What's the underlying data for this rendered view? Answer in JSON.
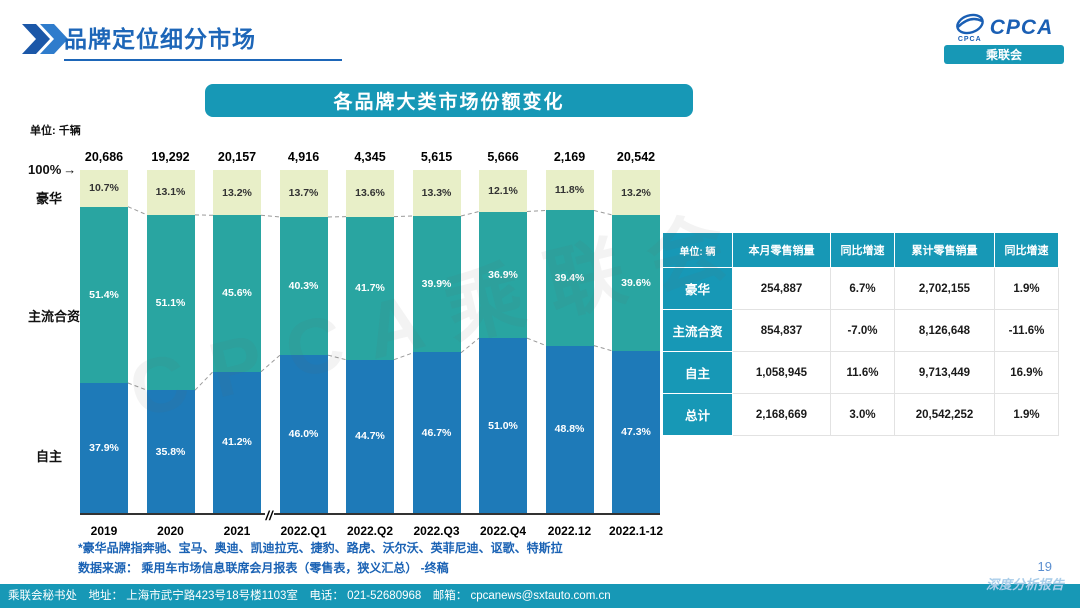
{
  "header": {
    "title": "品牌定位细分市场",
    "logo_text": "CPCA",
    "logo_small": "CPCA",
    "logo_subtext": "乘联会"
  },
  "chart": {
    "banner_title": "各品牌大类市场份额变化",
    "unit_label": "单位: 千辆",
    "axis_labels": {
      "top": "100%",
      "arrow": "→",
      "luxury": "豪华",
      "jv": "主流合资",
      "domestic": "自主"
    },
    "axis_break": "//"
  },
  "chart_data": {
    "type": "bar",
    "stacked": true,
    "title": "各品牌大类市场份额变化",
    "unit": "单位: 千辆",
    "ylim": [
      0,
      100
    ],
    "categories": [
      "2019",
      "2020",
      "2021",
      "2022.Q1",
      "2022.Q2",
      "2022.Q3",
      "2022.Q4",
      "2022.12",
      "2022.1-12"
    ],
    "totals": [
      "20,686",
      "19,292",
      "20,157",
      "4,916",
      "4,345",
      "5,615",
      "5,666",
      "2,169",
      "20,542"
    ],
    "axis_break_between": [
      "2021",
      "2022.Q1"
    ],
    "series": [
      {
        "name": "自主",
        "key": "domestic",
        "color": "#1e7ab8",
        "text_color": "#ffffff",
        "values": [
          37.9,
          35.8,
          41.2,
          46.0,
          44.7,
          46.7,
          51.0,
          48.8,
          47.3
        ]
      },
      {
        "name": "主流合资",
        "key": "jv",
        "color": "#29a5a1",
        "text_color": "#ffffff",
        "values": [
          51.4,
          51.1,
          45.6,
          40.3,
          41.7,
          39.9,
          36.9,
          39.4,
          39.6
        ]
      },
      {
        "name": "豪华",
        "key": "luxury",
        "color": "#e8efc8",
        "text_color": "#333333",
        "values": [
          10.7,
          13.1,
          13.2,
          13.7,
          13.6,
          13.3,
          12.1,
          11.8,
          13.2
        ]
      }
    ]
  },
  "table": {
    "headers": [
      "单位: 辆",
      "本月零售销量",
      "同比增速",
      "累计零售销量",
      "同比增速"
    ],
    "rows": [
      {
        "label": "豪华",
        "cells": [
          "254,887",
          "6.7%",
          "2,702,155",
          "1.9%"
        ]
      },
      {
        "label": "主流合资",
        "cells": [
          "854,837",
          "-7.0%",
          "8,126,648",
          "-11.6%"
        ]
      },
      {
        "label": "自主",
        "cells": [
          "1,058,945",
          "11.6%",
          "9,713,449",
          "16.9%"
        ]
      },
      {
        "label": "总计",
        "cells": [
          "2,168,669",
          "3.0%",
          "20,542,252",
          "1.9%"
        ]
      }
    ]
  },
  "footnotes": [
    "*豪华品牌指奔驰、宝马、奥迪、凯迪拉克、捷豹、路虎、沃尔沃、英菲尼迪、讴歌、特斯拉",
    "数据来源： 乘用车市场信息联席会月报表（零售表，狭义汇总） -终稿"
  ],
  "footer": {
    "text": "乘联会秘书处　地址： 上海市武宁路423号18号楼1103室　电话： 021-52680968　邮箱： cpcanews@sxtauto.com.cn",
    "page_number": "19",
    "report_label": "深度分析报告"
  },
  "watermark": "CPCA乘联会"
}
